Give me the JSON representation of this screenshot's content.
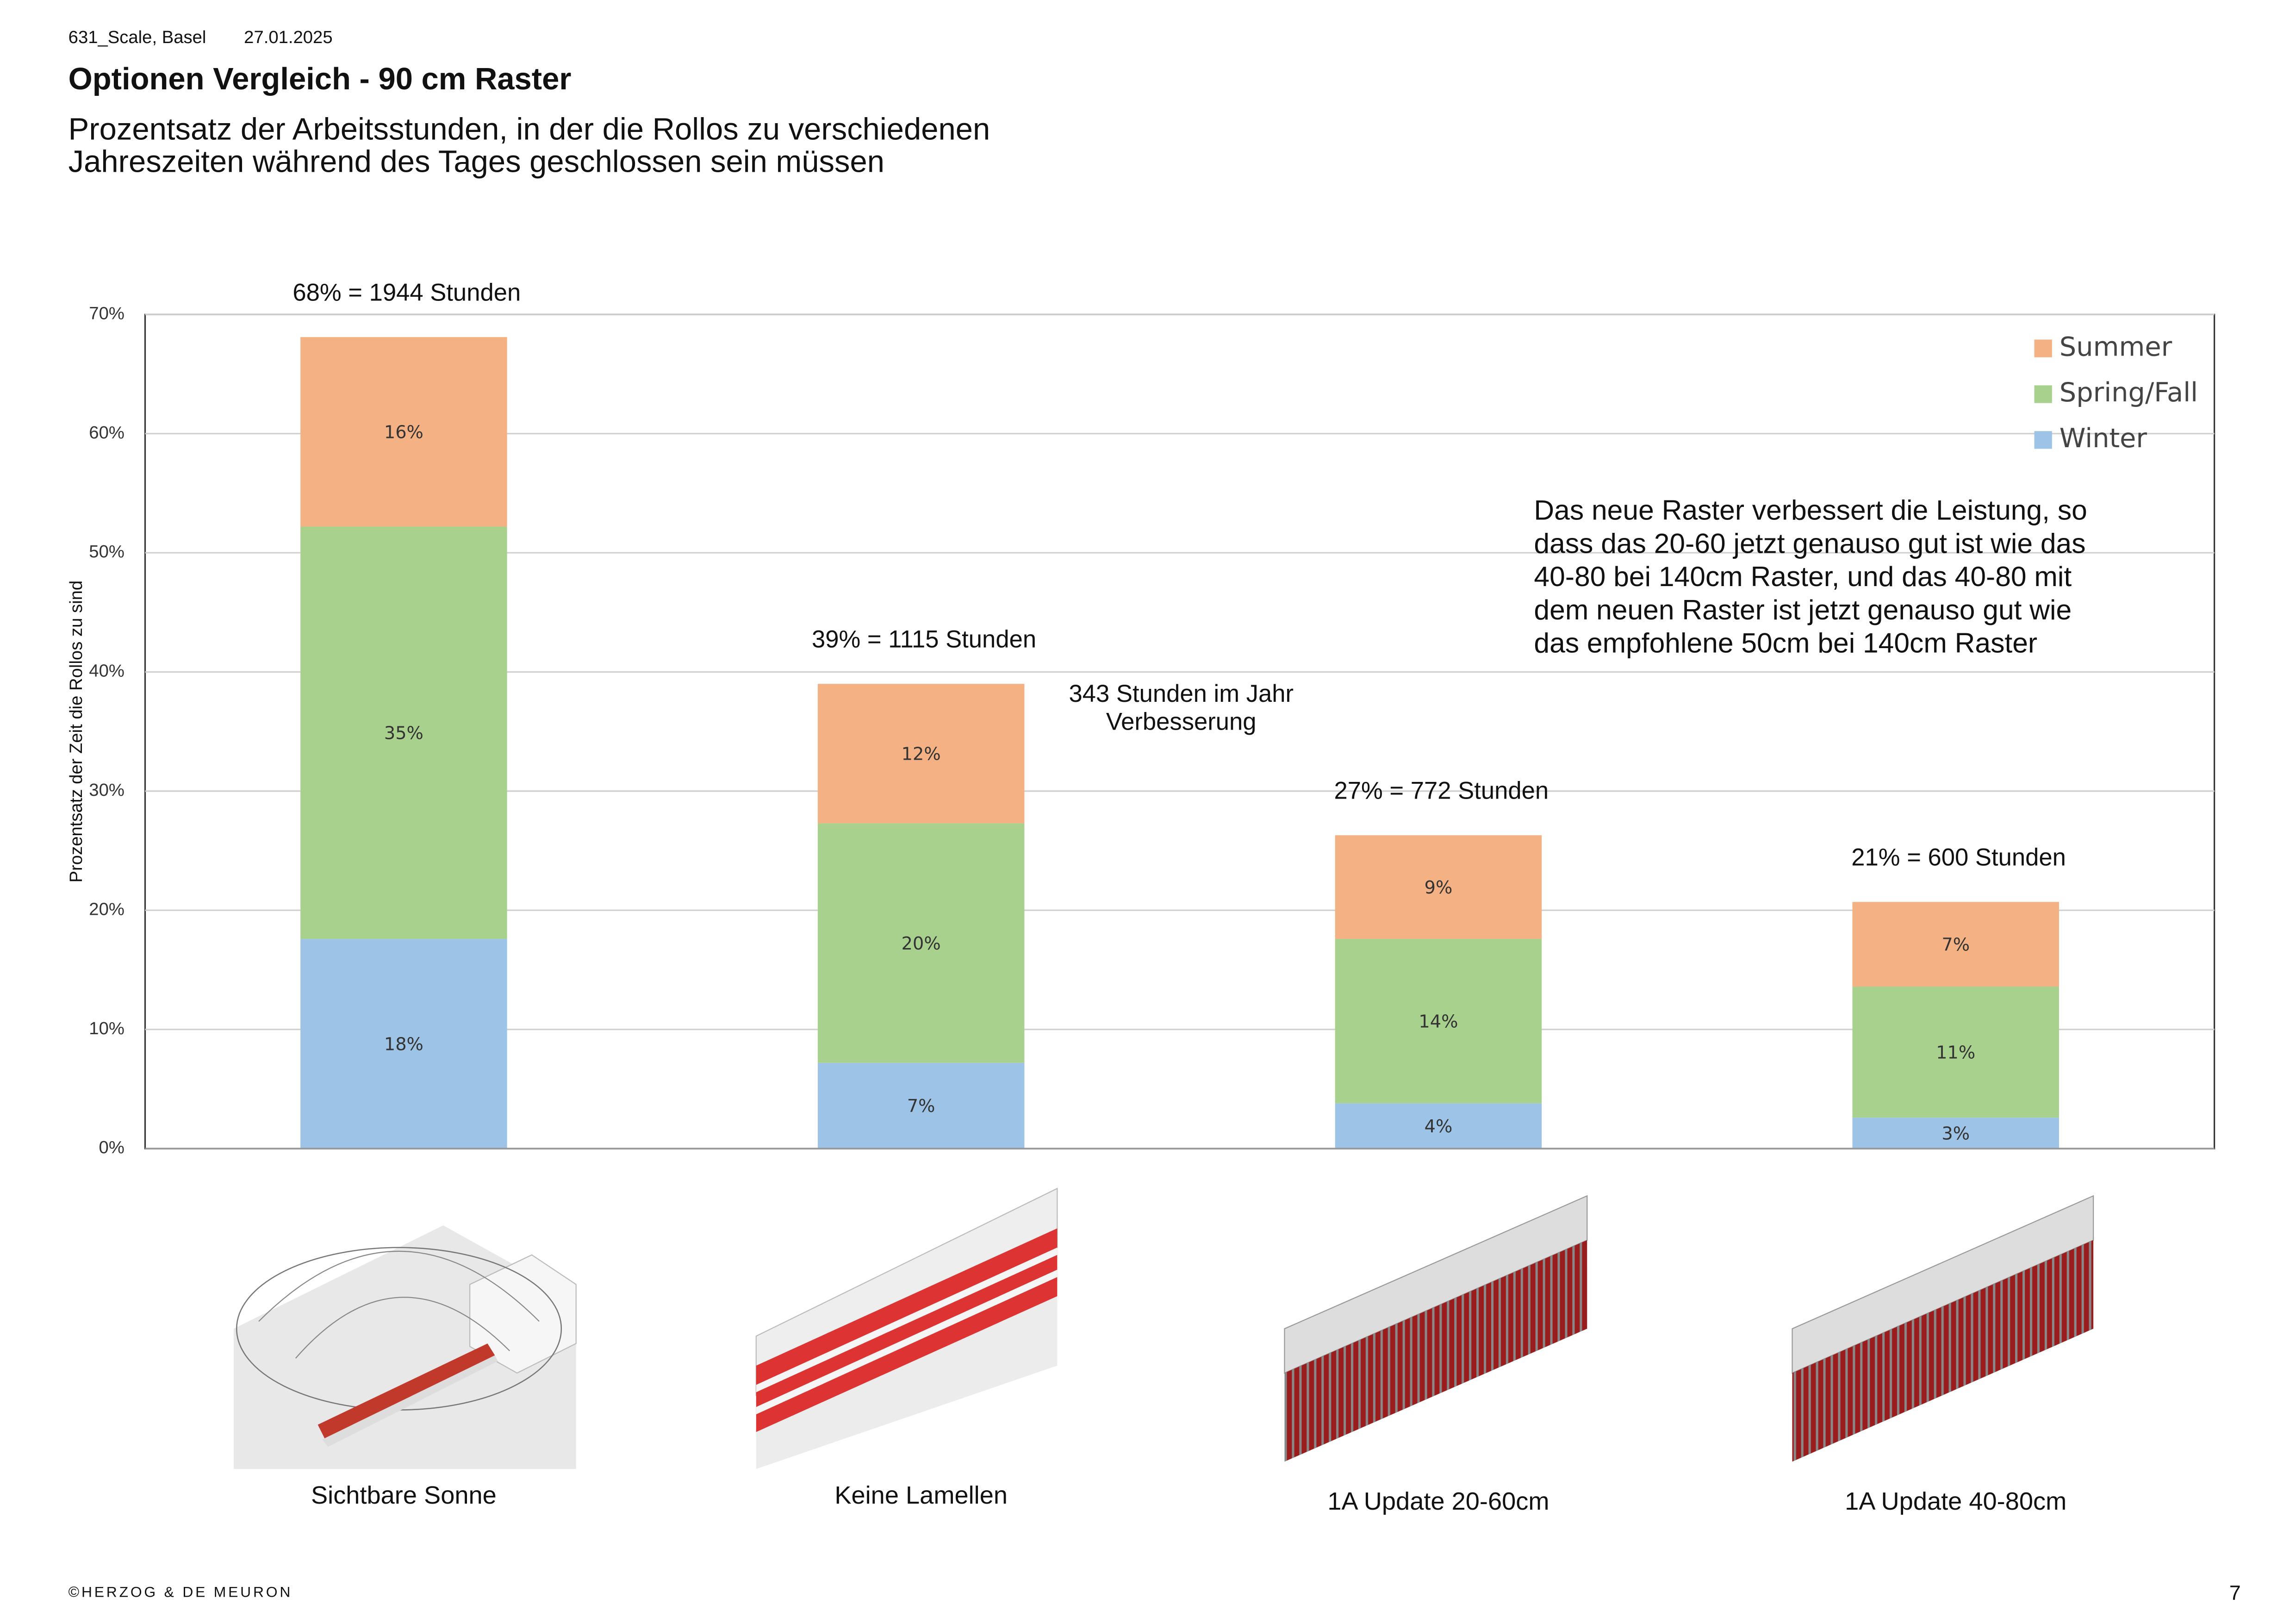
{
  "header": {
    "project": "631_Scale, Basel",
    "date": "27.01.2025",
    "title": "Optionen Vergleich - 90 cm Raster",
    "subtitle_lines": [
      "Prozentsatz der Arbeitsstunden, in der die Rollos zu verschiedenen",
      "Jahreszeiten während des Tages geschlossen sein müssen"
    ]
  },
  "chart_data": {
    "type": "stacked_bar",
    "y_label": "Prozentsatz der Zeit die Rollos zu sind",
    "categories": [
      "Sichtbare Sonne",
      "Keine Lamellen",
      "1A Update 20-60cm",
      "1A Update 40-80cm"
    ],
    "series": [
      {
        "name": "Winter",
        "color": "#9dc3e6",
        "values": [
          17.6,
          7.2,
          3.8,
          2.6
        ],
        "value_labels": [
          "18%",
          "7%",
          "4%",
          "3%"
        ]
      },
      {
        "name": "Spring/Fall",
        "color": "#a9d18e",
        "values": [
          34.6,
          20.1,
          13.8,
          11.0
        ],
        "value_labels": [
          "35%",
          "20%",
          "14%",
          "11%"
        ]
      },
      {
        "name": "Summer",
        "color": "#f4b183",
        "values": [
          15.9,
          11.7,
          8.7,
          7.1
        ],
        "value_labels": [
          "16%",
          "12%",
          "9%",
          "7%"
        ]
      }
    ],
    "total_labels": [
      "68% = 1944 Stunden",
      "39% = 1115 Stunden",
      "27% = 772 Stunden",
      "21% = 600 Stunden"
    ],
    "ylim": [
      0,
      70
    ],
    "yticks": [
      {
        "value": 0,
        "label": "0%"
      },
      {
        "value": 10,
        "label": "10%"
      },
      {
        "value": 20,
        "label": "20%"
      },
      {
        "value": 30,
        "label": "30%"
      },
      {
        "value": 40,
        "label": "40%"
      },
      {
        "value": 50,
        "label": "50%"
      },
      {
        "value": 60,
        "label": "60%"
      },
      {
        "value": 70,
        "label": "70%"
      }
    ],
    "grid": true,
    "legend": "top-right",
    "arrow_annotation": [
      "343 Stunden im Jahr",
      "Verbesserung"
    ],
    "note_lines": [
      "Das neue Raster verbessert die Leistung, so",
      "dass das 20-60 jetzt genauso gut ist wie das",
      "40-80 bei 140cm Raster, und das 40-80 mit",
      "dem neuen Raster ist jetzt genauso gut wie",
      "das empfohlene 50cm bei 140cm Raster"
    ]
  },
  "footer": {
    "copyright": "©HERZOG & DE MEURON",
    "page": "7"
  }
}
